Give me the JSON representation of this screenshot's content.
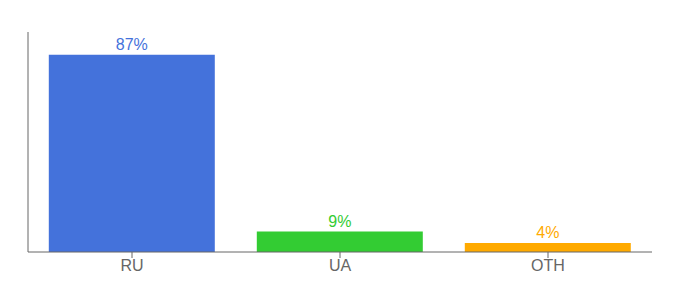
{
  "chart_data": {
    "type": "bar",
    "categories": [
      "RU",
      "UA",
      "OTH"
    ],
    "values": [
      87,
      9,
      4
    ],
    "value_labels": [
      "87%",
      "9%",
      "4%"
    ],
    "colors": [
      "#4472db",
      "#33cc33",
      "#ffaa00"
    ],
    "ylim": [
      0,
      97
    ],
    "grid": false,
    "data_labels": true,
    "tick_labels": "x"
  }
}
